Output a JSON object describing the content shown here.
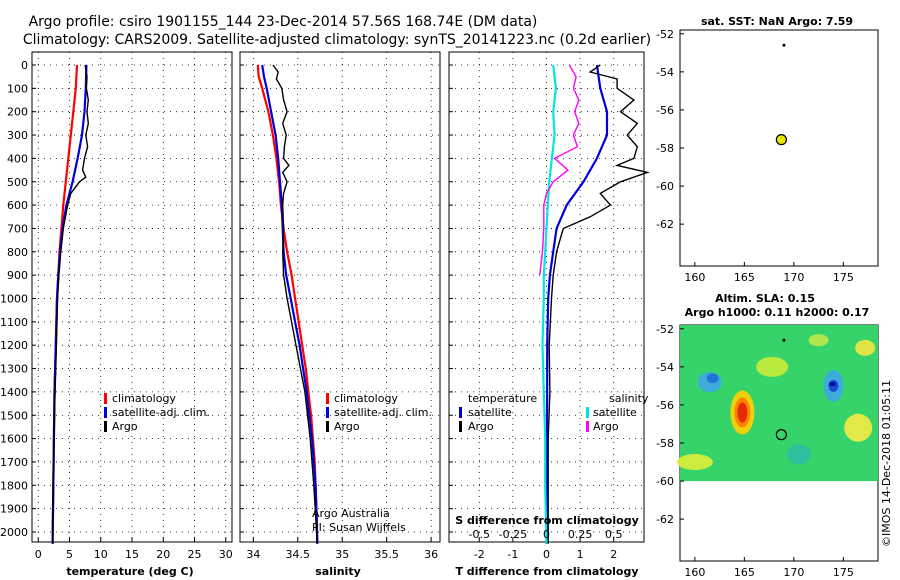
{
  "header": {
    "line1": "Argo profile: csiro 1901155_144 23-Dec-2014 57.56S 168.74E (DM data)",
    "line2": "Climatology: CARS2009. Satellite-adjusted climatology: synTS_20141223.nc (0.2d earlier)"
  },
  "colors": {
    "climatology": "#ff0000",
    "satellite": "#0000dd",
    "argo": "#000000",
    "s_satellite": "#00e5e5",
    "s_argo": "#ff00ff"
  },
  "chart_data": [
    {
      "type": "line",
      "name": "temperature",
      "xlabel": "temperature (deg C)",
      "xlim": [
        -1,
        31
      ],
      "xticks": [
        "0",
        "5",
        "10",
        "15",
        "20",
        "25",
        "30"
      ],
      "ylim": [
        2050,
        0
      ],
      "yticks": [
        "0",
        "100",
        "200",
        "300",
        "400",
        "500",
        "600",
        "700",
        "800",
        "900",
        "1000",
        "1100",
        "1200",
        "1300",
        "1400",
        "1500",
        "1600",
        "1700",
        "1800",
        "1900",
        "2000"
      ],
      "legend": [
        "climatology",
        "satellite-adj. clim.",
        "Argo"
      ],
      "series": [
        {
          "name": "climatology",
          "color": "#ff0000",
          "depth": [
            0,
            100,
            200,
            300,
            400,
            500,
            600,
            700,
            800,
            900,
            1000,
            1200,
            1400,
            1600,
            1800,
            2050
          ],
          "values": [
            6.2,
            6.0,
            5.6,
            5.2,
            4.8,
            4.4,
            4.0,
            3.7,
            3.4,
            3.2,
            3.0,
            2.8,
            2.6,
            2.5,
            2.4,
            2.3
          ]
        },
        {
          "name": "satellite-adj. clim.",
          "color": "#0000dd",
          "depth": [
            0,
            100,
            200,
            300,
            400,
            500,
            600,
            700,
            800,
            900,
            1000,
            1200,
            1400,
            1600,
            1800,
            2050
          ],
          "values": [
            7.7,
            7.6,
            7.4,
            7.0,
            6.3,
            5.5,
            4.5,
            3.9,
            3.5,
            3.2,
            3.0,
            2.8,
            2.6,
            2.5,
            2.4,
            2.3
          ]
        },
        {
          "name": "Argo",
          "color": "#000000",
          "depth": [
            0,
            50,
            100,
            150,
            200,
            250,
            300,
            350,
            400,
            450,
            480,
            500,
            550,
            600,
            700,
            800,
            900,
            1000,
            1200,
            1400,
            1600,
            1800,
            2050
          ],
          "values": [
            7.5,
            7.8,
            7.7,
            8.0,
            7.8,
            8.0,
            7.6,
            7.9,
            7.4,
            7.1,
            7.6,
            6.6,
            5.2,
            4.7,
            4.0,
            3.6,
            3.3,
            3.1,
            2.9,
            2.7,
            2.5,
            2.4,
            2.3
          ]
        }
      ]
    },
    {
      "type": "line",
      "name": "salinity",
      "xlabel": "salinity",
      "xlim": [
        33.85,
        36.1
      ],
      "xticks": [
        "34",
        "34.5",
        "35",
        "35.5",
        "36"
      ],
      "ylim": [
        2050,
        0
      ],
      "legend": [
        "climatology",
        "satellite-adj. clim.",
        "Argo"
      ],
      "annotation": [
        "Argo Australia",
        "PI: Susan Wijffels"
      ],
      "series": [
        {
          "name": "climatology",
          "color": "#ff0000",
          "depth": [
            0,
            50,
            100,
            200,
            300,
            400,
            500,
            600,
            700,
            800,
            900,
            1000,
            1100,
            1200,
            1300,
            1400,
            1500,
            1600,
            1700,
            1800,
            1900,
            2050
          ],
          "values": [
            34.05,
            34.06,
            34.1,
            34.17,
            34.22,
            34.26,
            34.29,
            34.31,
            34.34,
            34.38,
            34.43,
            34.47,
            34.51,
            34.55,
            34.59,
            34.62,
            34.65,
            34.67,
            34.69,
            34.7,
            34.71,
            34.72
          ]
        },
        {
          "name": "satellite-adj. clim.",
          "color": "#0000dd",
          "depth": [
            0,
            50,
            100,
            200,
            300,
            400,
            500,
            600,
            700,
            800,
            900,
            1000,
            1100,
            1200,
            1300,
            1400,
            1500,
            1600,
            1700,
            1800,
            1900,
            2050
          ],
          "values": [
            34.1,
            34.12,
            34.15,
            34.2,
            34.25,
            34.28,
            34.3,
            34.32,
            34.33,
            34.34,
            34.37,
            34.42,
            34.47,
            34.52,
            34.56,
            34.6,
            34.63,
            34.66,
            34.68,
            34.7,
            34.71,
            34.72
          ]
        },
        {
          "name": "Argo",
          "color": "#000000",
          "depth": [
            0,
            30,
            60,
            100,
            150,
            200,
            250,
            300,
            350,
            400,
            430,
            460,
            500,
            550,
            600,
            700,
            800,
            900,
            1000,
            1200,
            1400,
            1600,
            1800,
            2050
          ],
          "values": [
            34.22,
            34.28,
            34.26,
            34.32,
            34.34,
            34.38,
            34.33,
            34.37,
            34.35,
            34.34,
            34.4,
            34.33,
            34.38,
            34.34,
            34.33,
            34.34,
            34.33,
            34.34,
            34.38,
            34.48,
            34.58,
            34.64,
            34.68,
            34.72
          ]
        }
      ]
    },
    {
      "type": "line",
      "name": "difference",
      "xlabel": "T difference from climatology",
      "xlim": [
        -2.9,
        2.9
      ],
      "xticks": [
        "-2",
        "-1",
        "0",
        "1",
        "2"
      ],
      "top_xlabel": "S difference from climatology",
      "top_xticks": [
        "-0.5",
        "-0.25",
        "0",
        "0.25",
        "0.5"
      ],
      "top_xlim": [
        -0.725,
        0.725
      ],
      "ylim": [
        2050,
        0
      ],
      "legend_left_title": "temperature",
      "legend_right_title": "salinity",
      "legend_left": [
        "satellite",
        "Argo"
      ],
      "legend_right": [
        "satellite",
        "Argo"
      ],
      "series": [
        {
          "name": "T satellite",
          "color": "#0000dd",
          "axis": "T",
          "depth": [
            0,
            100,
            200,
            300,
            400,
            500,
            600,
            700,
            800,
            900,
            1000,
            1200,
            1400,
            1600,
            1800,
            2050
          ],
          "values": [
            1.5,
            1.6,
            1.8,
            1.8,
            1.5,
            1.1,
            0.6,
            0.3,
            0.2,
            0.1,
            0.05,
            0.02,
            0.02,
            0.01,
            0.01,
            0.0
          ]
        },
        {
          "name": "T Argo",
          "color": "#000000",
          "axis": "T",
          "depth": [
            0,
            30,
            60,
            100,
            150,
            200,
            250,
            300,
            350,
            400,
            430,
            460,
            500,
            550,
            600,
            650,
            700,
            750,
            800,
            900,
            1000,
            1200,
            1400,
            1600,
            1800,
            2050
          ],
          "values": [
            1.6,
            1.3,
            2.1,
            2.1,
            2.6,
            2.2,
            2.7,
            2.4,
            2.7,
            2.6,
            2.1,
            3.0,
            2.2,
            1.6,
            1.9,
            1.3,
            0.5,
            0.4,
            0.3,
            0.2,
            0.15,
            0.08,
            0.1,
            0.05,
            0.05,
            0.05
          ]
        },
        {
          "name": "S satellite",
          "color": "#00e5e5",
          "axis": "S",
          "depth": [
            0,
            100,
            200,
            300,
            400,
            500,
            600,
            700,
            800,
            900,
            1000,
            1200,
            1400,
            1600,
            1800,
            2050
          ],
          "values": [
            0.05,
            0.07,
            0.05,
            0.06,
            0.04,
            0.02,
            0.01,
            0.0,
            -0.01,
            -0.02,
            -0.02,
            -0.03,
            -0.02,
            -0.01,
            -0.01,
            0.0
          ]
        },
        {
          "name": "S Argo",
          "color": "#ff00ff",
          "axis": "S",
          "depth": [
            0,
            50,
            100,
            150,
            200,
            250,
            300,
            350,
            400,
            450,
            500,
            550,
            600,
            700,
            800,
            850,
            900
          ],
          "values": [
            0.17,
            0.22,
            0.2,
            0.24,
            0.21,
            0.24,
            0.2,
            0.23,
            0.06,
            0.16,
            0.05,
            0.0,
            -0.02,
            -0.02,
            -0.03,
            -0.04,
            -0.05
          ]
        }
      ]
    },
    {
      "type": "scatter",
      "name": "sst-map",
      "title": "sat. SST: NaN Argo: 7.59",
      "xlim": [
        158.5,
        178.5
      ],
      "ylim": [
        -64.2,
        -51.8
      ],
      "xticks": [
        "160",
        "165",
        "170",
        "175"
      ],
      "yticks": [
        "-52",
        "-54",
        "-56",
        "-58",
        "-60",
        "-62"
      ],
      "points": [
        {
          "x": 169.0,
          "y": -52.6,
          "size": "small"
        },
        {
          "x": 168.74,
          "y": -57.56,
          "size": "large",
          "fill": "#e6e600"
        }
      ]
    },
    {
      "type": "heatmap",
      "name": "sla-map",
      "title": "Altim. SLA: 0.15",
      "subtitle": "Argo h1000: 0.11 h2000: 0.17",
      "xlim": [
        158.5,
        178.5
      ],
      "ylim": [
        -64.2,
        -51.8
      ],
      "xticks": [
        "160",
        "165",
        "170",
        "175"
      ],
      "yticks": [
        "-52",
        "-54",
        "-56",
        "-58",
        "-60",
        "-62"
      ],
      "points": [
        {
          "x": 169.0,
          "y": -52.6,
          "size": "small"
        },
        {
          "x": 168.74,
          "y": -57.56,
          "size": "large"
        }
      ],
      "credit": "©IMOS 14-Dec-2018 01:05:11"
    }
  ]
}
